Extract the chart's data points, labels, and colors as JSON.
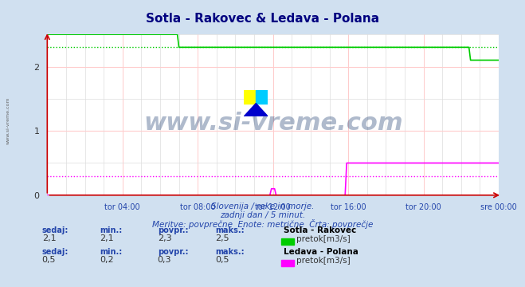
{
  "title": "Sotla - Rakovec & Ledava - Polana",
  "title_color": "#000080",
  "bg_color": "#d0e0f0",
  "plot_bg_color": "#ffffff",
  "grid_color_major": "#ffcccc",
  "grid_color_minor": "#dddddd",
  "xlim": [
    0,
    288
  ],
  "ylim": [
    0,
    2.5
  ],
  "yticks": [
    0,
    1,
    2
  ],
  "xtick_labels": [
    "tor 04:00",
    "tor 08:00",
    "tor 12:00",
    "tor 16:00",
    "tor 20:00",
    "sre 00:00"
  ],
  "xtick_positions": [
    48,
    96,
    144,
    192,
    240,
    288
  ],
  "series1_color": "#00cc00",
  "series2_color": "#ff00ff",
  "watermark": "www.si-vreme.com",
  "watermark_color": "#1a3a6e",
  "subtitle1": "Slovenija / reke in morje.",
  "subtitle2": "zadnji dan / 5 minut.",
  "subtitle3": "Meritve: povprečne  Enote: metrične  Črta: povprečje",
  "subtitle_color": "#2244aa",
  "legend1_label": "Sotla - Rakovec",
  "legend1_sublabel": "pretok[m3/s]",
  "legend2_label": "Ledava - Polana",
  "legend2_sublabel": "pretok[m3/s]",
  "stats1_sedaj": "2,1",
  "stats1_min": "2,1",
  "stats1_povpr": "2,3",
  "stats1_maks": "2,5",
  "stats2_sedaj": "0,5",
  "stats2_min": "0,2",
  "stats2_povpr": "0,3",
  "stats2_maks": "0,5",
  "arrow_color": "#cc0000",
  "sotla_avg": 2.3,
  "ledava_avg": 0.3,
  "left_watermark": "www.si-vreme.com"
}
